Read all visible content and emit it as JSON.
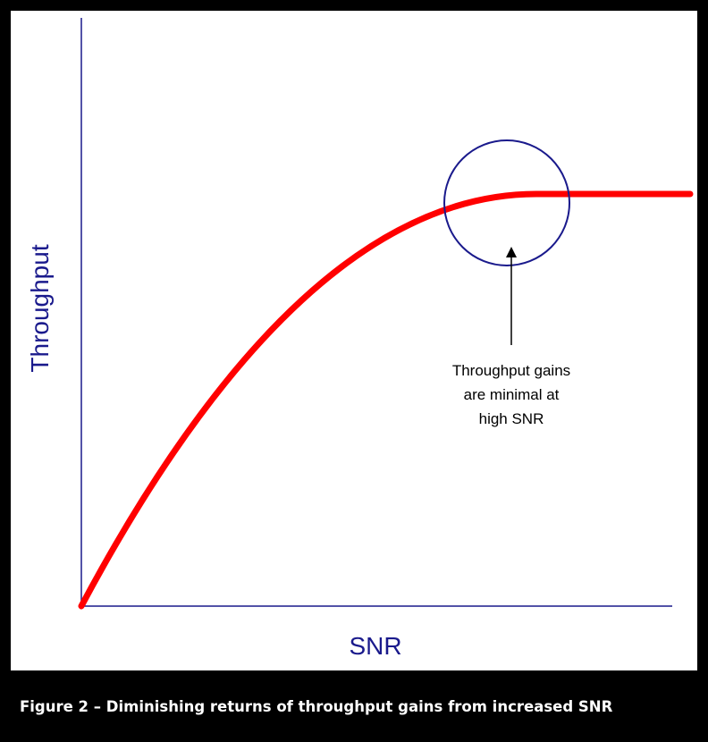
{
  "axes": {
    "y_label": "Throughput",
    "x_label": "SNR"
  },
  "annotation": {
    "lines": [
      "Throughput gains",
      "are minimal at",
      "high SNR"
    ]
  },
  "caption": "Figure 2 – Diminishing returns of throughput gains from increased SNR"
}
